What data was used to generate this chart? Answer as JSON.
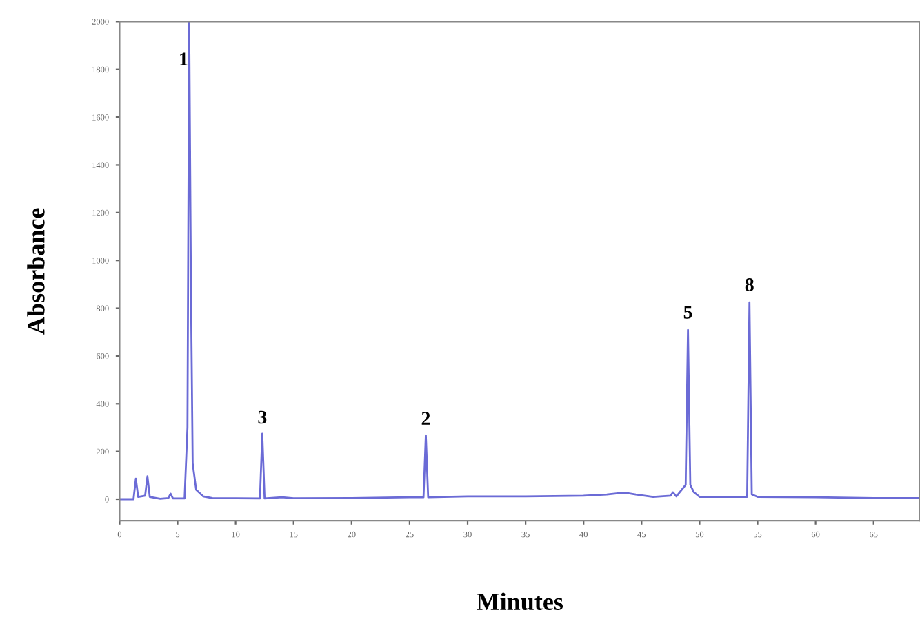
{
  "chart_data": {
    "type": "line",
    "xlabel": "Minutes",
    "ylabel": "Absorbance",
    "x": [
      0,
      1.2,
      1.4,
      1.6,
      2.2,
      2.4,
      2.6,
      3.5,
      4.2,
      4.4,
      4.6,
      5.6,
      5.85,
      6.0,
      6.15,
      6.3,
      6.6,
      7.2,
      8,
      12.1,
      12.3,
      12.5,
      14,
      15,
      20,
      25,
      26.2,
      26.4,
      26.6,
      30,
      35,
      40,
      42,
      43.5,
      44.5,
      46,
      47.5,
      47.7,
      48,
      48.8,
      49.0,
      49.2,
      49.5,
      50,
      54.1,
      54.3,
      54.5,
      55,
      60,
      65,
      69
    ],
    "series": [
      {
        "color": "#6b6bd6",
        "values": [
          0,
          0,
          86,
          10,
          15,
          96,
          10,
          2,
          5,
          23,
          3,
          3,
          300,
          2000,
          900,
          150,
          40,
          12,
          5,
          3,
          274,
          3,
          8,
          4,
          5,
          8,
          8,
          268,
          8,
          12,
          12,
          15,
          20,
          28,
          20,
          10,
          15,
          29,
          12,
          60,
          709,
          60,
          30,
          10,
          10,
          824,
          20,
          10,
          8,
          5,
          5
        ]
      }
    ],
    "annotations": [
      {
        "text": "1",
        "x": 5.5,
        "y": 1800
      },
      {
        "text": "3",
        "x": 12.3,
        "y": 300
      },
      {
        "text": "2",
        "x": 26.4,
        "y": 295
      },
      {
        "text": "5",
        "x": 49.0,
        "y": 740
      },
      {
        "text": "8",
        "x": 54.3,
        "y": 855
      }
    ],
    "xlim": [
      0,
      69
    ],
    "ylim": [
      -90,
      2000
    ],
    "xticks": [
      0,
      5,
      10,
      15,
      20,
      25,
      30,
      35,
      40,
      45,
      50,
      55,
      60,
      65
    ],
    "yticks": [
      0,
      200,
      400,
      600,
      800,
      1000,
      1200,
      1400,
      1600,
      1800,
      2000
    ],
    "grid": false,
    "legend": false,
    "marker": "none",
    "line_style": "solid"
  }
}
